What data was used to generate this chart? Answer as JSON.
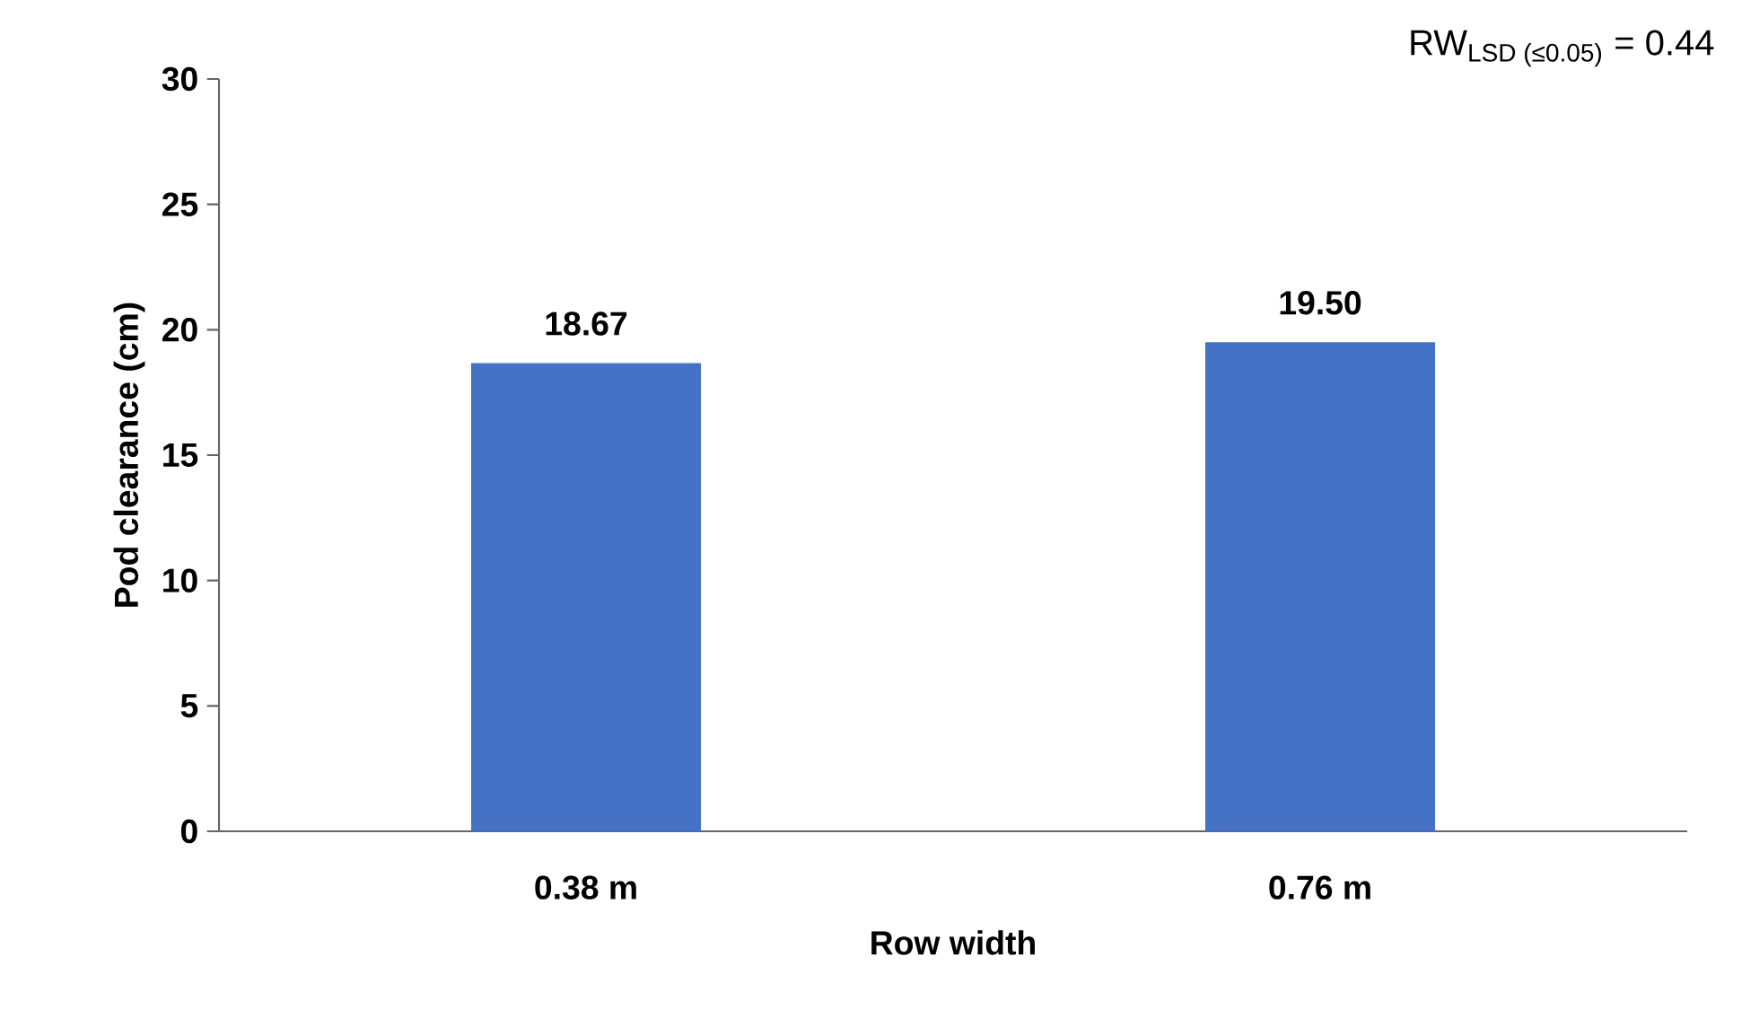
{
  "chart_data": {
    "type": "bar",
    "xlabel": "Row width",
    "ylabel": "Pod clearance (cm)",
    "categories": [
      "0.38 m",
      "0.76 m"
    ],
    "values": [
      18.67,
      19.5
    ],
    "value_labels": [
      "18.67",
      "19.50"
    ],
    "color": "#4472c4",
    "ylim": [
      0,
      30
    ],
    "yticks": [
      0,
      5,
      10,
      15,
      20,
      25,
      30
    ],
    "annotations": [
      "RW$_{LSD (≤0.05)}$ = 0.44"
    ]
  }
}
